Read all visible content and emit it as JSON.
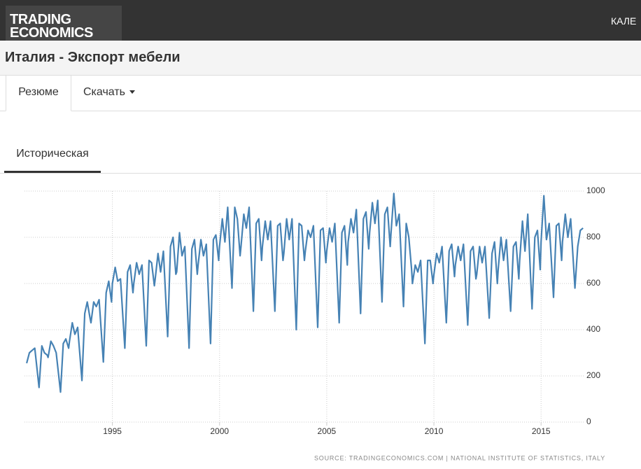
{
  "header": {
    "logo_line1": "TRADING",
    "logo_line2": "ECONOMICS",
    "nav": "КАЛЕ"
  },
  "page_title": "Италия - Экспорт мебели",
  "tabs": [
    "Резюме",
    "Скачать"
  ],
  "subtab": "Историческая",
  "chart_data": {
    "type": "line",
    "color": "#4682b4",
    "source": "SOURCE: TRADINGECONOMICS.COM | NATIONAL INSTITUTE OF STATISTICS, ITALY",
    "xlim": [
      1990.9,
      2017.05
    ],
    "xticks": [
      1995,
      2000,
      2005,
      2010,
      2015
    ],
    "ylim": [
      0,
      1000
    ],
    "yticks": [
      0,
      200,
      400,
      600,
      800,
      1000
    ],
    "grid": true,
    "x": [
      1991,
      1991.13,
      1991.25,
      1991.38,
      1991.58,
      1991.71,
      1991.83,
      1991.96,
      1992,
      1992.13,
      1992.25,
      1992.38,
      1992.58,
      1992.71,
      1992.83,
      1992.96,
      1993,
      1993.13,
      1993.25,
      1993.38,
      1993.58,
      1993.71,
      1993.83,
      1993.96,
      1994,
      1994.13,
      1994.25,
      1994.38,
      1994.58,
      1994.71,
      1994.83,
      1994.96,
      1995,
      1995.13,
      1995.25,
      1995.38,
      1995.58,
      1995.71,
      1995.83,
      1995.96,
      1996,
      1996.13,
      1996.25,
      1996.38,
      1996.58,
      1996.71,
      1996.83,
      1996.96,
      1997,
      1997.13,
      1997.25,
      1997.38,
      1997.58,
      1997.71,
      1997.83,
      1997.96,
      1998,
      1998.13,
      1998.25,
      1998.38,
      1998.58,
      1998.71,
      1998.83,
      1998.96,
      1999,
      1999.13,
      1999.25,
      1999.38,
      1999.58,
      1999.71,
      1999.83,
      1999.96,
      2000,
      2000.13,
      2000.25,
      2000.38,
      2000.58,
      2000.71,
      2000.83,
      2000.96,
      2001,
      2001.13,
      2001.25,
      2001.38,
      2001.58,
      2001.71,
      2001.83,
      2001.96,
      2002,
      2002.13,
      2002.25,
      2002.38,
      2002.58,
      2002.71,
      2002.83,
      2002.96,
      2003,
      2003.13,
      2003.25,
      2003.38,
      2003.58,
      2003.71,
      2003.83,
      2003.96,
      2004,
      2004.13,
      2004.25,
      2004.38,
      2004.58,
      2004.71,
      2004.83,
      2004.96,
      2005,
      2005.13,
      2005.25,
      2005.38,
      2005.58,
      2005.71,
      2005.83,
      2005.96,
      2006,
      2006.13,
      2006.25,
      2006.38,
      2006.58,
      2006.71,
      2006.83,
      2006.96,
      2007,
      2007.13,
      2007.25,
      2007.38,
      2007.58,
      2007.71,
      2007.83,
      2007.96,
      2008,
      2008.13,
      2008.25,
      2008.38,
      2008.58,
      2008.71,
      2008.83,
      2008.96,
      2009,
      2009.13,
      2009.25,
      2009.38,
      2009.58,
      2009.71,
      2009.83,
      2009.96,
      2010,
      2010.13,
      2010.25,
      2010.38,
      2010.58,
      2010.71,
      2010.83,
      2010.96,
      2011,
      2011.13,
      2011.25,
      2011.38,
      2011.58,
      2011.71,
      2011.83,
      2011.96,
      2012,
      2012.13,
      2012.25,
      2012.38,
      2012.58,
      2012.71,
      2012.83,
      2012.96,
      2013,
      2013.13,
      2013.25,
      2013.38,
      2013.58,
      2013.71,
      2013.83,
      2013.96,
      2014,
      2014.13,
      2014.25,
      2014.38,
      2014.58,
      2014.71,
      2014.83,
      2014.96,
      2015,
      2015.13,
      2015.25,
      2015.38,
      2015.58,
      2015.71,
      2015.83,
      2015.96,
      2016,
      2016.13,
      2016.25,
      2016.38,
      2016.58,
      2016.71,
      2016.83,
      2016.96
    ],
    "values": [
      255,
      300,
      310,
      320,
      150,
      330,
      300,
      290,
      280,
      350,
      330,
      300,
      130,
      340,
      360,
      320,
      350,
      430,
      380,
      410,
      180,
      470,
      520,
      450,
      430,
      520,
      500,
      530,
      260,
      560,
      610,
      520,
      600,
      670,
      610,
      620,
      320,
      650,
      680,
      560,
      600,
      690,
      640,
      680,
      330,
      700,
      690,
      590,
      620,
      730,
      650,
      740,
      370,
      760,
      800,
      640,
      650,
      820,
      720,
      760,
      320,
      750,
      790,
      640,
      680,
      790,
      720,
      770,
      340,
      790,
      810,
      700,
      760,
      880,
      780,
      930,
      580,
      930,
      880,
      720,
      760,
      900,
      840,
      930,
      480,
      860,
      880,
      700,
      760,
      870,
      790,
      870,
      480,
      850,
      860,
      700,
      730,
      880,
      790,
      880,
      400,
      860,
      850,
      700,
      740,
      830,
      800,
      850,
      410,
      830,
      840,
      690,
      740,
      840,
      780,
      860,
      430,
      820,
      850,
      680,
      780,
      880,
      820,
      920,
      470,
      880,
      910,
      750,
      820,
      950,
      860,
      960,
      520,
      900,
      930,
      760,
      820,
      990,
      850,
      900,
      500,
      860,
      800,
      660,
      600,
      680,
      650,
      700,
      340,
      700,
      700,
      600,
      640,
      730,
      690,
      760,
      430,
      740,
      770,
      630,
      680,
      760,
      700,
      770,
      420,
      740,
      760,
      620,
      640,
      760,
      690,
      760,
      450,
      730,
      780,
      600,
      660,
      800,
      700,
      790,
      480,
      760,
      780,
      620,
      700,
      870,
      740,
      900,
      490,
      800,
      830,
      660,
      780,
      980,
      790,
      860,
      540,
      850,
      860,
      700,
      780,
      900,
      800,
      880,
      580,
      760,
      830,
      840
    ]
  }
}
